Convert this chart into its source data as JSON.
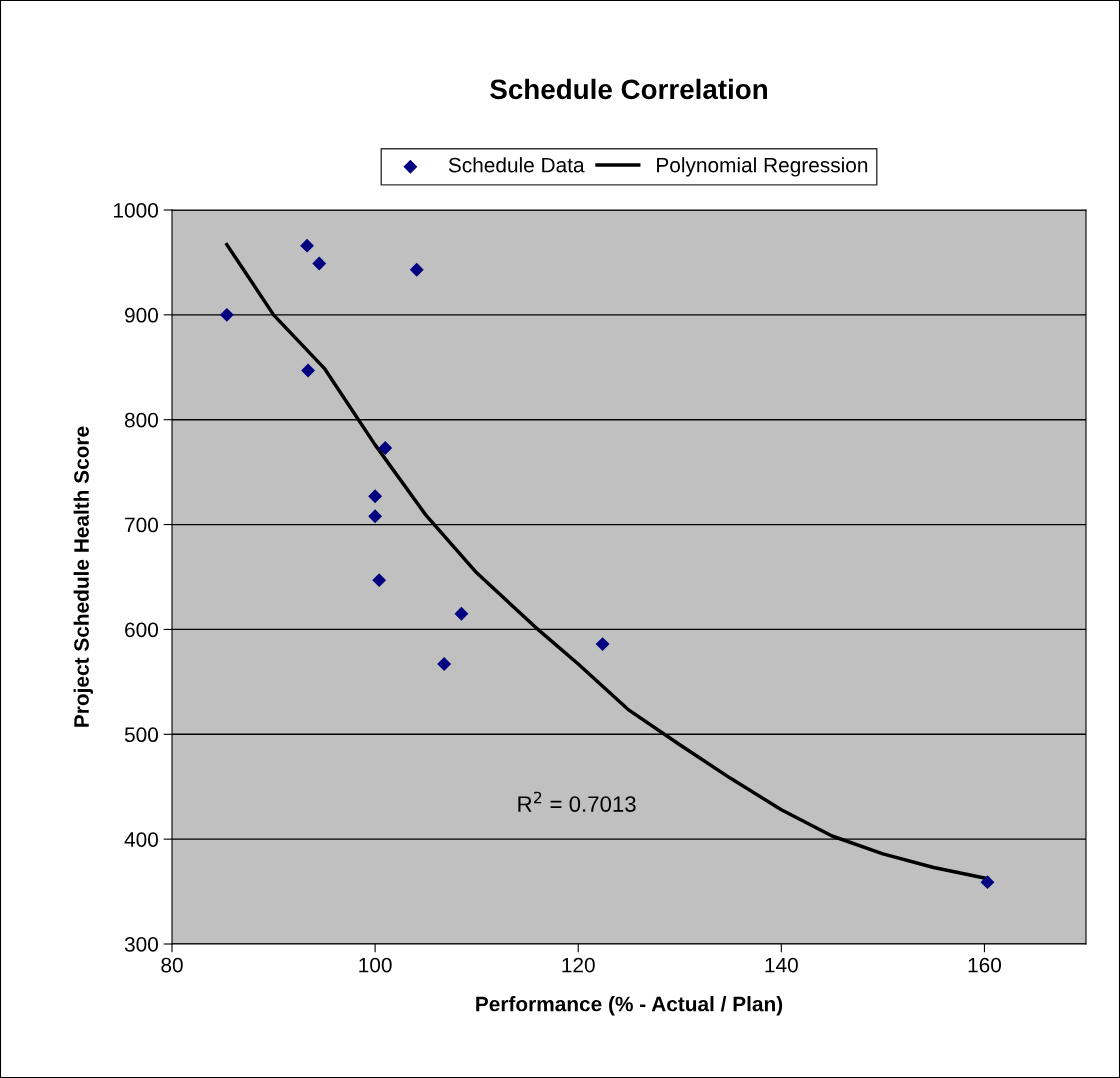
{
  "chart_data": {
    "type": "scatter",
    "title": "Schedule Correlation",
    "xlabel": "Performance (% - Actual / Plan)",
    "ylabel": "Project Schedule Health Score",
    "series": [
      {
        "name": "Schedule Data",
        "color": "#000080",
        "marker": "diamond",
        "x": [
          85.4,
          93.3,
          94.5,
          104.1,
          93.4,
          101.0,
          100.0,
          100.0,
          100.4,
          108.5,
          106.8,
          122.4,
          160.3
        ],
        "values": [
          900,
          966,
          949,
          943,
          847,
          773,
          727,
          708,
          647,
          615,
          567,
          586,
          359
        ]
      },
      {
        "name": "Polynomial Regression",
        "type": "line",
        "color": "#000000",
        "line_style": "solid",
        "marker": "none",
        "x": [
          85.4,
          90,
          95,
          100,
          105,
          110,
          115.8,
          120,
          125,
          130,
          135,
          140,
          145,
          150,
          155,
          160,
          160.3
        ],
        "values": [
          967,
          900,
          849,
          776,
          709,
          654,
          602,
          567,
          523,
          490,
          458,
          428,
          403,
          386,
          373,
          363,
          362
        ]
      }
    ],
    "xlim": [
      80,
      170
    ],
    "xticks": [
      80,
      100,
      120,
      140,
      160
    ],
    "ylim": [
      300,
      1000
    ],
    "yticks": [
      300,
      400,
      500,
      600,
      700,
      800,
      900,
      1000
    ],
    "grid": "y",
    "legend": "top",
    "annotations": [
      "R$^{2}$ = 0.7013"
    ]
  }
}
